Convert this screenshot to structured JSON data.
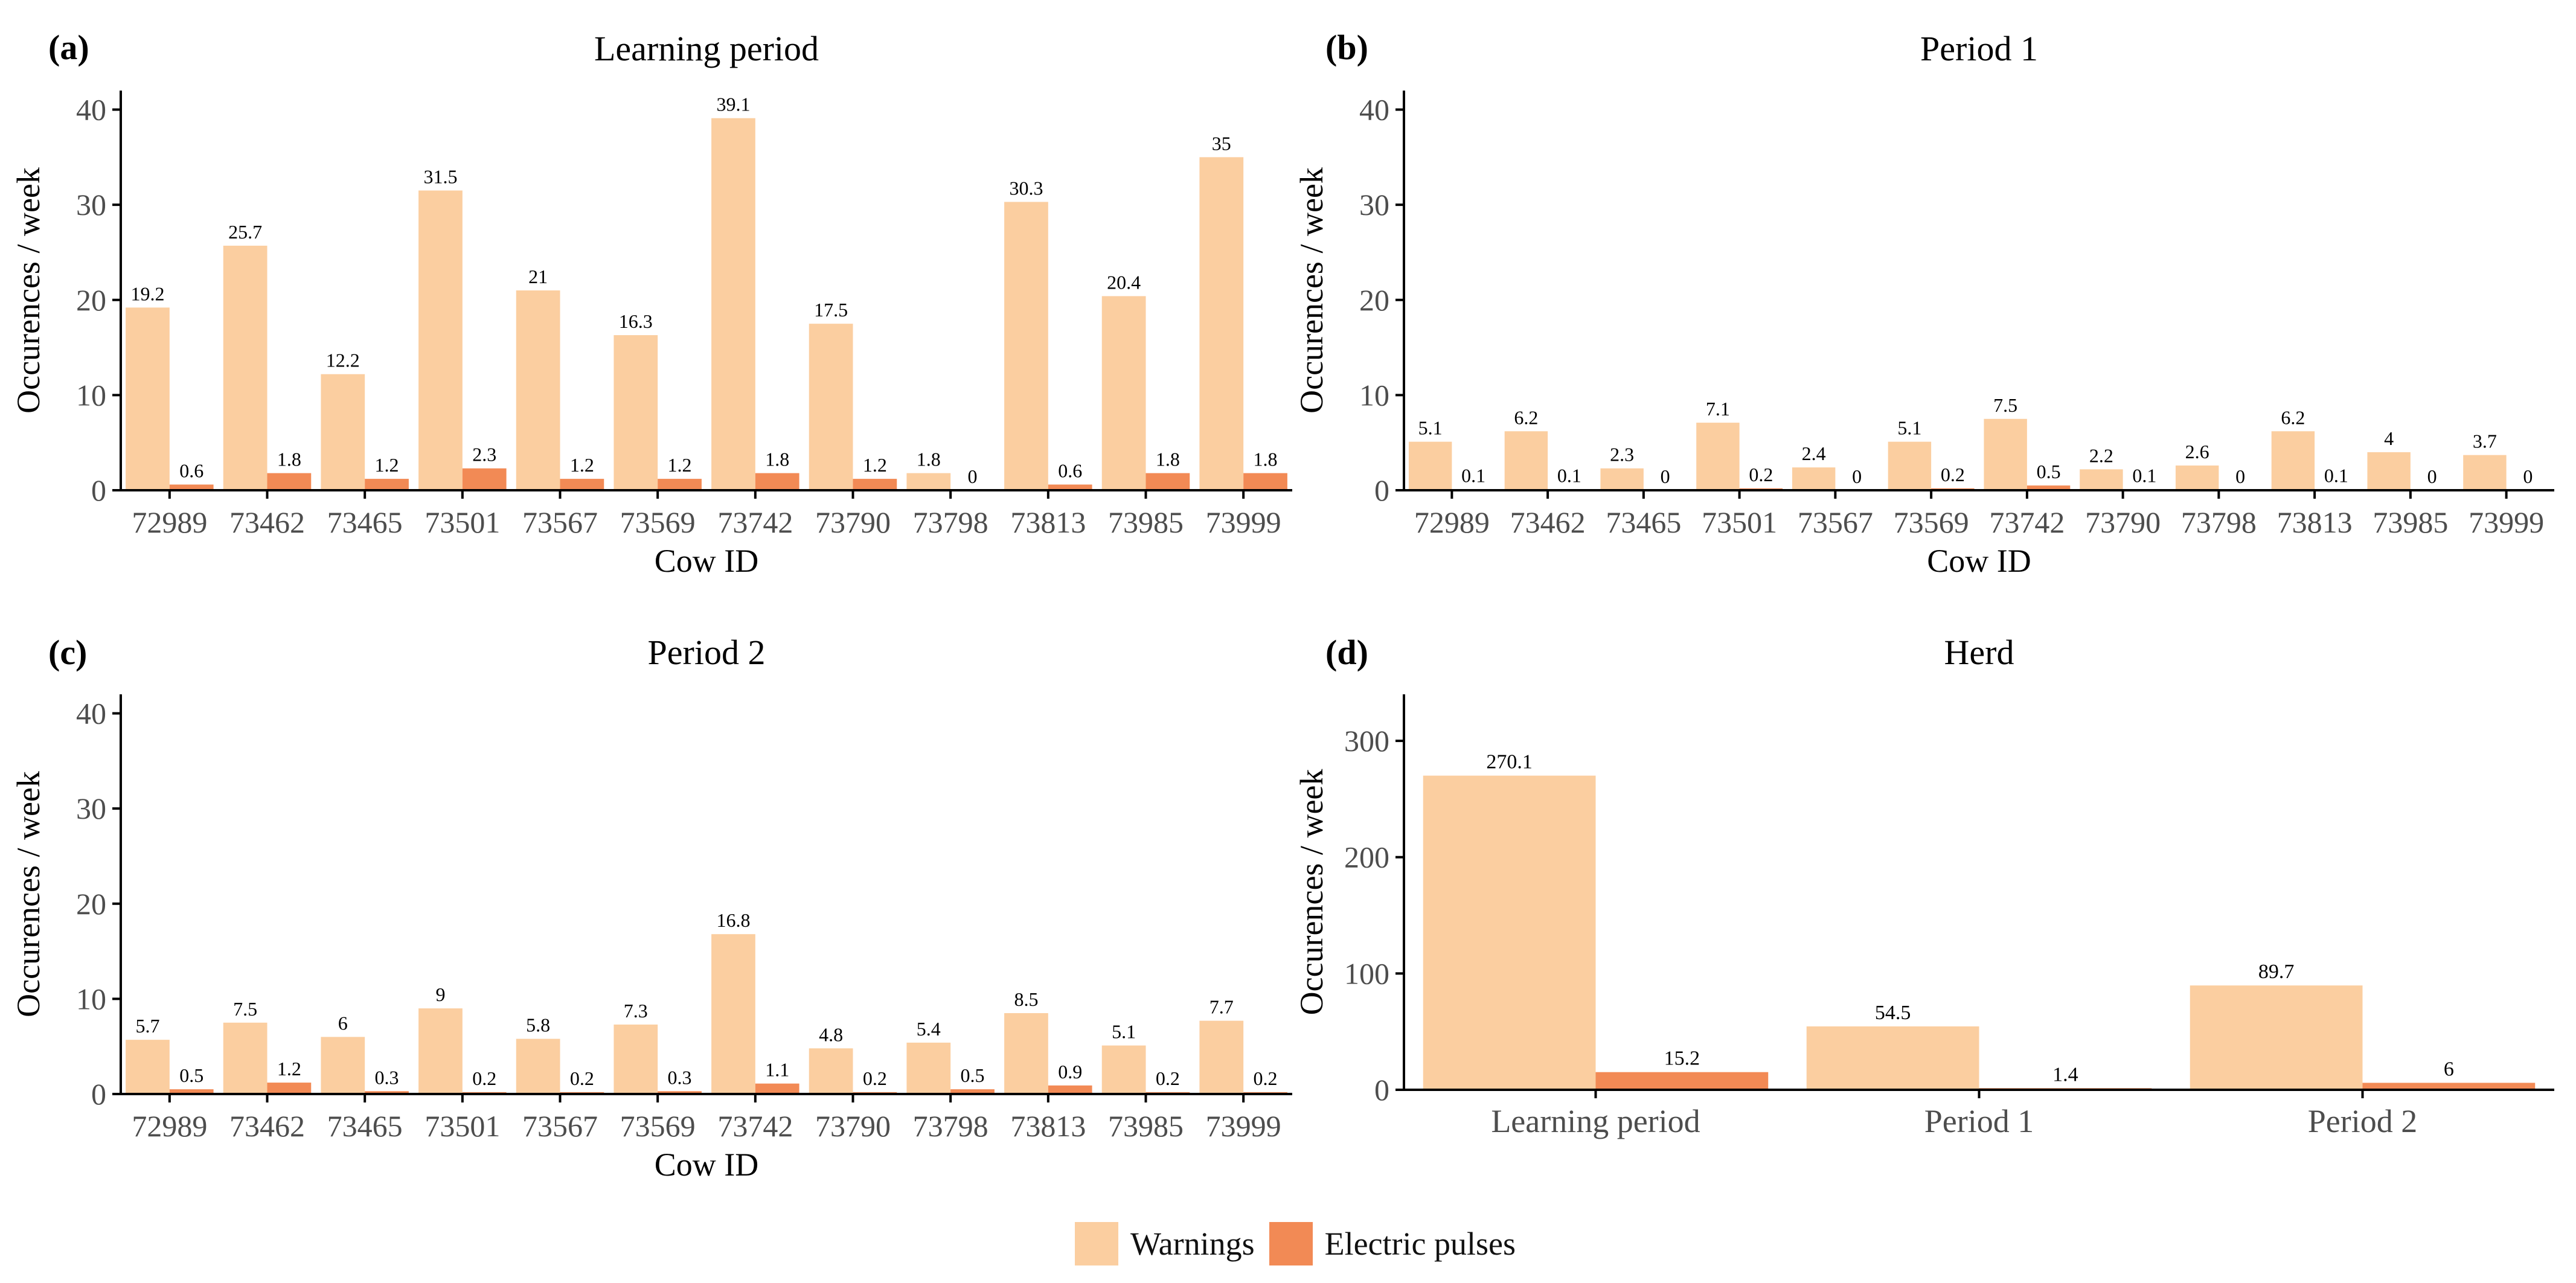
{
  "colors": {
    "warnings": "#FBCEA0",
    "pulses": "#F28A55",
    "axis": "#000000",
    "tick_text": "#4d4d4d"
  },
  "legend": {
    "warnings_label": "Warnings",
    "pulses_label": "Electric pulses"
  },
  "chart_data": [
    {
      "panel_label": "(a)",
      "type": "bar",
      "title": "Learning period",
      "xlabel": "Cow ID",
      "ylabel": "Occurences / week",
      "ylim": [
        0,
        42
      ],
      "yticks": [
        0,
        10,
        20,
        30,
        40
      ],
      "grid": false,
      "categories": [
        "72989",
        "73462",
        "73465",
        "73501",
        "73567",
        "73569",
        "73742",
        "73790",
        "73798",
        "73813",
        "73985",
        "73999"
      ],
      "series": [
        {
          "name": "Warnings",
          "values": [
            19.2,
            25.7,
            12.2,
            31.5,
            21,
            16.3,
            39.1,
            17.5,
            1.8,
            30.3,
            20.4,
            35
          ]
        },
        {
          "name": "Electric pulses",
          "values": [
            0.6,
            1.8,
            1.2,
            2.3,
            1.2,
            1.2,
            1.8,
            1.2,
            0,
            0.6,
            1.8,
            1.8
          ]
        }
      ]
    },
    {
      "panel_label": "(b)",
      "type": "bar",
      "title": "Period 1",
      "xlabel": "Cow ID",
      "ylabel": "Occurences / week",
      "ylim": [
        0,
        42
      ],
      "yticks": [
        0,
        10,
        20,
        30,
        40
      ],
      "grid": false,
      "categories": [
        "72989",
        "73462",
        "73465",
        "73501",
        "73567",
        "73569",
        "73742",
        "73790",
        "73798",
        "73813",
        "73985",
        "73999"
      ],
      "series": [
        {
          "name": "Warnings",
          "values": [
            5.1,
            6.2,
            2.3,
            7.1,
            2.4,
            5.1,
            7.5,
            2.2,
            2.6,
            6.2,
            4,
            3.7
          ]
        },
        {
          "name": "Electric pulses",
          "values": [
            0.1,
            0.1,
            0,
            0.2,
            0,
            0.2,
            0.5,
            0.1,
            0,
            0.1,
            0,
            0
          ]
        }
      ]
    },
    {
      "panel_label": "(c)",
      "type": "bar",
      "title": "Period 2",
      "xlabel": "Cow ID",
      "ylabel": "Occurences / week",
      "ylim": [
        0,
        42
      ],
      "yticks": [
        0,
        10,
        20,
        30,
        40
      ],
      "grid": false,
      "categories": [
        "72989",
        "73462",
        "73465",
        "73501",
        "73567",
        "73569",
        "73742",
        "73790",
        "73798",
        "73813",
        "73985",
        "73999"
      ],
      "series": [
        {
          "name": "Warnings",
          "values": [
            5.7,
            7.5,
            6,
            9,
            5.8,
            7.3,
            16.8,
            4.8,
            5.4,
            8.5,
            5.1,
            7.7
          ]
        },
        {
          "name": "Electric pulses",
          "values": [
            0.5,
            1.2,
            0.3,
            0.2,
            0.2,
            0.3,
            1.1,
            0.2,
            0.5,
            0.9,
            0.2,
            0.2
          ]
        }
      ]
    },
    {
      "panel_label": "(d)",
      "type": "bar",
      "title": "Herd",
      "xlabel": "",
      "ylabel": "Occurences / week",
      "ylim": [
        0,
        340
      ],
      "yticks": [
        0,
        100,
        200,
        300
      ],
      "grid": false,
      "categories": [
        "Learning period",
        "Period 1",
        "Period 2"
      ],
      "series": [
        {
          "name": "Warnings",
          "values": [
            270.1,
            54.5,
            89.7
          ]
        },
        {
          "name": "Electric pulses",
          "values": [
            15.2,
            1.4,
            6
          ]
        }
      ]
    }
  ]
}
